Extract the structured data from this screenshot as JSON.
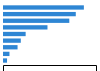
{
  "chart_data": {
    "type": "bar",
    "orientation": "horizontal",
    "categories": [
      null,
      null,
      null,
      null,
      null,
      null,
      null,
      null,
      null
    ],
    "values": [
      100,
      90,
      82,
      55,
      28,
      22,
      18,
      8,
      5
    ],
    "color": "#2e86d4",
    "xlim": [
      0,
      115
    ],
    "tick_labels": false
  }
}
